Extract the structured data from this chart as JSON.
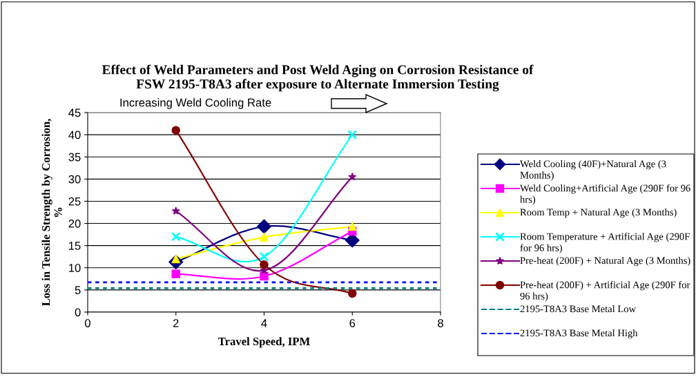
{
  "chart_data": {
    "type": "line",
    "title": "Effect of Weld Parameters and Post Weld Aging on Corrosion Resistance of\nFSW 2195-T8A3 after exposure to Alternate Immersion Testing",
    "xlabel": "Travel Speed, IPM",
    "ylabel": "Loss in Tensile Strength by Corrosion,\n%",
    "annotations": [
      "Increasing Weld Cooling Rate"
    ],
    "xlim": [
      0,
      8
    ],
    "xticks": [
      0,
      2,
      4,
      6,
      8
    ],
    "ylim": [
      0,
      45
    ],
    "yticks": [
      0,
      5,
      10,
      15,
      20,
      25,
      30,
      35,
      40,
      45
    ],
    "grid": "y",
    "legend": "right",
    "series": [
      {
        "name": "Weld Cooling (40F)+Natural Age (3 Months)",
        "color": "#000080",
        "marker": "diamond",
        "x": [
          2,
          4,
          6
        ],
        "values": [
          11.3,
          19.3,
          16.2
        ]
      },
      {
        "name": "Weld Cooling+Artificial Age (290F for 96 hrs)",
        "color": "#ff00ff",
        "marker": "square",
        "x": [
          2,
          4,
          6
        ],
        "values": [
          8.6,
          8.1,
          18.2
        ]
      },
      {
        "name": "Room Temp + Natural Age (3 Months)",
        "color": "#ffff00",
        "marker": "triangle",
        "x": [
          2,
          4,
          6
        ],
        "values": [
          12.0,
          16.9,
          19.3
        ]
      },
      {
        "name": "Room Temperature + Artificial Age (290F for 96 hrs)",
        "color": "#00ffff",
        "marker": "cross",
        "x": [
          2,
          4,
          6
        ],
        "values": [
          17.0,
          12.5,
          40.0
        ]
      },
      {
        "name": "Pre-heat (200F) + Natural Age (3 Months)",
        "color": "#800080",
        "marker": "star",
        "x": [
          2,
          4,
          6
        ],
        "values": [
          22.8,
          9.4,
          30.5
        ]
      },
      {
        "name": "Pre-heat (200F) + Artificial Age (290F for 96 hrs)",
        "color": "#800000",
        "marker": "circle",
        "x": [
          2,
          4,
          6
        ],
        "values": [
          41.0,
          10.7,
          4.2
        ]
      },
      {
        "name": "2195-T8A3 Base Metal Low",
        "color": "#008080",
        "marker": "none",
        "line_style": "dotted",
        "x": [
          0,
          8
        ],
        "values": [
          5.4,
          5.4
        ]
      },
      {
        "name": "2195-T8A3 Base Metal High",
        "color": "#0000ff",
        "marker": "none",
        "line_style": "dotted",
        "x": [
          0,
          8
        ],
        "values": [
          6.7,
          6.7
        ]
      }
    ]
  }
}
